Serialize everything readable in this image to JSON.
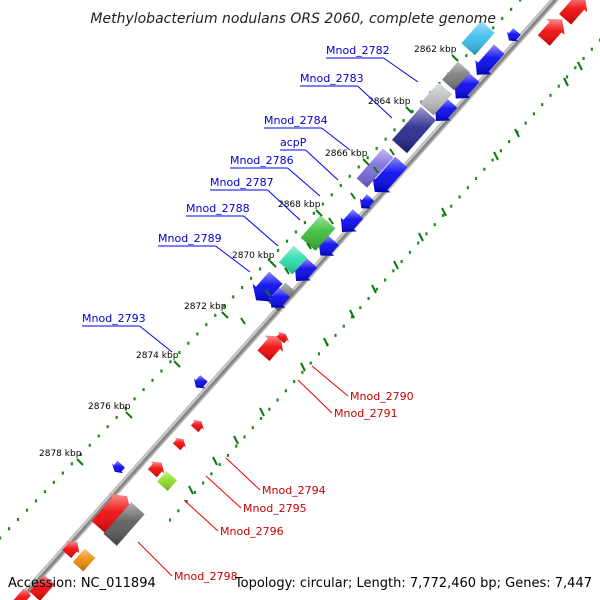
{
  "title": "Methylobacterium nodulans ORS 2060, complete genome",
  "footer": {
    "accession": "Accession: NC_011894",
    "topology": "Topology: circular; Length: 7,772,460 bp; Genes: 7,447"
  },
  "colors": {
    "forward_strand": "#0000ee",
    "reverse_strand": "#ee0000",
    "rna_gene": "#555555",
    "label_forward": "#0000cc",
    "label_reverse": "#cc0000",
    "tick": "#0a7a0a",
    "backbone": "#888888"
  },
  "kbp_ticks": [
    "2862 kbp",
    "2864 kbp",
    "2866 kbp",
    "2868 kbp",
    "2870 kbp",
    "2872 kbp",
    "2874 kbp",
    "2876 kbp",
    "2878 kbp"
  ],
  "gene_labels": {
    "forward": [
      "Mnod_2782",
      "Mnod_2783",
      "Mnod_2784",
      "acpP",
      "Mnod_2786",
      "Mnod_2787",
      "Mnod_2788",
      "Mnod_2789",
      "Mnod_2793"
    ],
    "reverse": [
      "Mnod_2790",
      "Mnod_2791",
      "Mnod_2794",
      "Mnod_2795",
      "Mnod_2796",
      "Mnod_2798"
    ]
  },
  "genes": [
    {
      "strand": "forward",
      "track": "inner",
      "color": "#0000ee"
    },
    {
      "strand": "forward",
      "track": "inner",
      "color": "#0000ee"
    },
    {
      "strand": "forward",
      "track": "inner",
      "color": "#0000ee"
    },
    {
      "strand": "forward",
      "track": "inner",
      "color": "#0000ee"
    },
    {
      "strand": "forward",
      "track": "inner",
      "color": "#0000ee"
    },
    {
      "strand": "forward",
      "track": "inner",
      "color": "#0000ee"
    },
    {
      "strand": "forward",
      "track": "inner",
      "color": "#0000ee"
    },
    {
      "strand": "forward",
      "track": "inner",
      "color": "#0000ee"
    },
    {
      "strand": "forward",
      "track": "inner",
      "color": "#0000ee"
    },
    {
      "strand": "forward",
      "track": "outer",
      "color": "#666666"
    },
    {
      "strand": "forward",
      "track": "outer",
      "color": "#33bbee"
    },
    {
      "strand": "forward",
      "track": "outer",
      "color": "#777777"
    },
    {
      "strand": "forward",
      "track": "outer",
      "color": "#bbbbbb"
    },
    {
      "strand": "forward",
      "track": "outer",
      "color": "#222288"
    },
    {
      "strand": "forward",
      "track": "outer",
      "color": "#7766dd"
    },
    {
      "strand": "forward",
      "track": "outer",
      "color": "#33bb33"
    },
    {
      "strand": "forward",
      "track": "outer",
      "color": "#22ddaa"
    },
    {
      "strand": "forward",
      "track": "outer",
      "color": "#0000ee"
    },
    {
      "strand": "forward",
      "track": "outer",
      "color": "#0000ee"
    },
    {
      "strand": "forward",
      "track": "outer",
      "color": "#0000ee"
    },
    {
      "strand": "reverse",
      "track": "outer",
      "color": "#ee0000"
    },
    {
      "strand": "reverse",
      "track": "outer",
      "color": "#ee0000"
    },
    {
      "strand": "reverse",
      "track": "outer",
      "color": "#ee0000"
    },
    {
      "strand": "reverse",
      "track": "outer",
      "color": "#ee0000"
    },
    {
      "strand": "reverse",
      "track": "outer",
      "color": "#ee0000"
    },
    {
      "strand": "reverse",
      "track": "outer",
      "color": "#ee0000"
    },
    {
      "strand": "reverse",
      "track": "outer",
      "color": "#ee0000"
    },
    {
      "strand": "reverse",
      "track": "outer",
      "color": "#ee0000"
    },
    {
      "strand": "reverse",
      "track": "outer",
      "color": "#88dd22"
    },
    {
      "strand": "reverse",
      "track": "outer",
      "color": "#555555"
    },
    {
      "strand": "reverse",
      "track": "outer",
      "color": "#ee8800"
    },
    {
      "strand": "reverse",
      "track": "outer",
      "color": "#ee0000"
    }
  ]
}
